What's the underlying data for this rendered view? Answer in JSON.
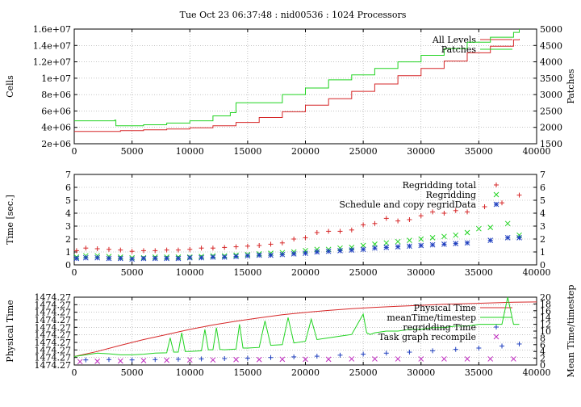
{
  "page_title": "Tue Oct 23 06:37:48 : nid00536 : 1024 Processors",
  "colors": {
    "red": "#d62728",
    "green": "#21d321",
    "blue": "#1f3fbf",
    "purple": "#bf29bf",
    "left_label": "#c0392b",
    "right_label": "#2fbf2f"
  },
  "chart_data": [
    {
      "type": "line",
      "ylabel": "Cells",
      "y2label": "Patches",
      "xlim": [
        0,
        40000
      ],
      "ylim": [
        2000000,
        16000000
      ],
      "y2lim": [
        1500,
        5000
      ],
      "x_ticks": [
        "0",
        "5000",
        "10000",
        "15000",
        "20000",
        "25000",
        "30000",
        "35000",
        "40000"
      ],
      "y_ticks": [
        "2e+06",
        "4e+06",
        "6e+06",
        "8e+06",
        "1e+07",
        "1.2e+07",
        "1.4e+07",
        "1.6e+07"
      ],
      "y2_ticks": [
        "1500",
        "2000",
        "2500",
        "3000",
        "3500",
        "4000",
        "4500",
        "5000"
      ],
      "grid": true,
      "legend_position": "top-right",
      "series": [
        {
          "name": "All Levels",
          "axis": "y",
          "color": "#d62728",
          "x": [
            0,
            3000,
            4000,
            6000,
            8000,
            10000,
            12000,
            14000,
            16000,
            18000,
            20000,
            22000,
            24000,
            26000,
            28000,
            30000,
            32000,
            34000,
            36000,
            38000,
            38500
          ],
          "y": [
            3500000,
            3500000,
            3600000,
            3700000,
            3800000,
            3950000,
            4200000,
            4600000,
            5200000,
            5900000,
            6700000,
            7500000,
            8400000,
            9300000,
            10300000,
            11200000,
            12100000,
            13100000,
            13900000,
            14700000,
            14800000
          ]
        },
        {
          "name": "Patches",
          "axis": "y2",
          "color": "#21d321",
          "x": [
            0,
            3500,
            3600,
            6000,
            8000,
            10000,
            12000,
            13500,
            14000,
            16000,
            18000,
            20000,
            22000,
            24000,
            26000,
            28000,
            30000,
            32000,
            34000,
            36000,
            38000,
            38500
          ],
          "y": [
            2200,
            2220,
            2050,
            2080,
            2130,
            2200,
            2350,
            2450,
            2750,
            2750,
            3000,
            3200,
            3450,
            3600,
            3800,
            4000,
            4200,
            4400,
            4600,
            4750,
            4900,
            5000
          ]
        }
      ]
    },
    {
      "type": "scatter",
      "ylabel": "Time [sec.]",
      "xlim": [
        0,
        40000
      ],
      "ylim": [
        0,
        7
      ],
      "y2lim": [
        0,
        7
      ],
      "x_ticks": [
        "0",
        "5000",
        "10000",
        "15000",
        "20000",
        "25000",
        "30000",
        "35000",
        "40000"
      ],
      "y_ticks": [
        "0",
        "1",
        "2",
        "3",
        "4",
        "5",
        "6",
        "7"
      ],
      "y2_ticks": [
        "0",
        "1",
        "2",
        "3",
        "4",
        "5",
        "6",
        "7"
      ],
      "grid": true,
      "legend_position": "top-right",
      "series": [
        {
          "name": "Regridding total",
          "marker": "plus",
          "color": "#d62728",
          "x": [
            200,
            1000,
            2000,
            3000,
            4000,
            5000,
            6000,
            7000,
            8000,
            9000,
            10000,
            11000,
            12000,
            13000,
            14000,
            15000,
            16000,
            17000,
            18000,
            19000,
            20000,
            21000,
            22000,
            23000,
            24000,
            25000,
            26000,
            27000,
            28000,
            29000,
            30000,
            31000,
            32000,
            33000,
            34000,
            35500,
            37000,
            38500
          ],
          "y": [
            1.1,
            1.3,
            1.25,
            1.2,
            1.15,
            1.05,
            1.1,
            1.1,
            1.15,
            1.15,
            1.2,
            1.3,
            1.3,
            1.35,
            1.4,
            1.45,
            1.5,
            1.6,
            1.7,
            2.0,
            2.1,
            2.5,
            2.6,
            2.6,
            2.7,
            3.1,
            3.2,
            3.6,
            3.4,
            3.5,
            3.8,
            4.1,
            4.0,
            4.2,
            4.1,
            4.5,
            4.8,
            5.4
          ]
        },
        {
          "name": "Regridding",
          "marker": "cross",
          "color": "#21d321",
          "x": [
            200,
            1000,
            2000,
            3000,
            4000,
            5000,
            6000,
            7000,
            8000,
            9000,
            10000,
            11000,
            12000,
            13000,
            14000,
            15000,
            16000,
            17000,
            18000,
            19000,
            20000,
            21000,
            22000,
            23000,
            24000,
            25000,
            26000,
            27000,
            28000,
            29000,
            30000,
            31000,
            32000,
            33000,
            34000,
            35000,
            36000,
            37500,
            38500
          ],
          "y": [
            0.6,
            0.7,
            0.7,
            0.65,
            0.6,
            0.55,
            0.55,
            0.6,
            0.6,
            0.6,
            0.6,
            0.65,
            0.7,
            0.7,
            0.75,
            0.8,
            0.85,
            0.9,
            0.95,
            1.0,
            1.1,
            1.2,
            1.2,
            1.3,
            1.35,
            1.5,
            1.6,
            1.7,
            1.8,
            1.9,
            2.0,
            2.1,
            2.2,
            2.3,
            2.5,
            2.8,
            2.9,
            3.2,
            2.3
          ]
        },
        {
          "name": "Schedule and copy regridData",
          "marker": "star",
          "color": "#1f3fbf",
          "x": [
            200,
            1000,
            2000,
            3000,
            4000,
            5000,
            6000,
            7000,
            8000,
            9000,
            10000,
            11000,
            12000,
            13000,
            14000,
            15000,
            16000,
            17000,
            18000,
            19000,
            20000,
            21000,
            22000,
            23000,
            24000,
            25000,
            26000,
            27000,
            28000,
            29000,
            30000,
            31000,
            32000,
            33000,
            34000,
            36000,
            37500,
            38500
          ],
          "y": [
            0.5,
            0.55,
            0.55,
            0.5,
            0.5,
            0.45,
            0.5,
            0.5,
            0.5,
            0.5,
            0.55,
            0.55,
            0.6,
            0.6,
            0.65,
            0.7,
            0.75,
            0.75,
            0.8,
            0.85,
            0.9,
            1.0,
            1.05,
            1.1,
            1.15,
            1.2,
            1.3,
            1.35,
            1.4,
            1.45,
            1.5,
            1.55,
            1.6,
            1.65,
            1.7,
            1.9,
            2.1,
            2.1
          ]
        }
      ]
    },
    {
      "type": "line",
      "ylabel": "Physical Time",
      "y2label": "Mean Time/timestep",
      "xlim": [
        0,
        40000
      ],
      "ylim": [
        0,
        9
      ],
      "y2lim": [
        0,
        20
      ],
      "x_ticks": [
        "0",
        "5000",
        "10000",
        "15000",
        "20000",
        "25000",
        "30000",
        "35000",
        "40000"
      ],
      "y_ticks": [
        "1474.27",
        "1474.27",
        "1474.27",
        "1474.27",
        "1474.27",
        "1474.27",
        "1474.27",
        "1474.27",
        "1474.27",
        "1474.27"
      ],
      "y2_ticks": [
        "0",
        "2",
        "4",
        "6",
        "8",
        "10",
        "12",
        "14",
        "16",
        "18",
        "20"
      ],
      "grid": true,
      "legend_position": "top-right",
      "series": [
        {
          "name": "Physical Time",
          "axis": "y2",
          "color": "#d62728",
          "x": [
            0,
            2000,
            4000,
            6000,
            8000,
            10000,
            12000,
            14000,
            16000,
            18000,
            20000,
            22000,
            24000,
            26000,
            28000,
            30000,
            32000,
            34000,
            36000,
            38000,
            40000
          ],
          "y": [
            2.5,
            4.0,
            5.8,
            7.5,
            9.0,
            10.5,
            11.8,
            12.9,
            13.9,
            14.8,
            15.5,
            16.1,
            16.6,
            17.0,
            17.3,
            17.6,
            17.9,
            18.1,
            18.3,
            18.5,
            18.6
          ]
        },
        {
          "name": "meanTime/timestep",
          "axis": "y2",
          "color": "#21d321",
          "x": [
            0,
            1000,
            2000,
            3000,
            4000,
            5000,
            6000,
            7000,
            8000,
            8300,
            8600,
            9000,
            9300,
            9600,
            10000,
            11000,
            11300,
            11600,
            12000,
            12300,
            12600,
            13000,
            14000,
            14300,
            14600,
            15000,
            16000,
            16500,
            17000,
            18000,
            18500,
            19000,
            20000,
            20500,
            21000,
            22000,
            23000,
            24000,
            25000,
            25300,
            25600,
            26000,
            27000,
            28000,
            29000,
            30000,
            31000,
            32000,
            33000,
            34000,
            35000,
            36000,
            37000,
            37500,
            38000,
            38500
          ],
          "y": [
            2.5,
            3.0,
            3.5,
            3.3,
            3.0,
            3.0,
            3.2,
            3.5,
            3.6,
            8.0,
            3.8,
            3.8,
            9.5,
            4.0,
            4.0,
            4.2,
            10.5,
            4.5,
            4.5,
            11.0,
            4.6,
            4.5,
            4.7,
            12.0,
            5.0,
            5.0,
            5.2,
            13.0,
            5.8,
            6.0,
            14.0,
            6.5,
            7.0,
            13.5,
            7.5,
            8.0,
            8.5,
            9.0,
            15.0,
            9.5,
            9.0,
            9.5,
            10.0,
            10.0,
            10.5,
            10.5,
            11.0,
            11.0,
            11.5,
            11.5,
            12.0,
            12.0,
            12.0,
            20.0,
            12.0,
            12.0
          ]
        },
        {
          "name": "regridding Time",
          "axis": "y2",
          "marker": "plus",
          "color": "#1f3fbf",
          "x": [
            1000,
            3000,
            5000,
            7000,
            9000,
            11000,
            13000,
            15000,
            17000,
            19000,
            21000,
            23000,
            25000,
            27000,
            29000,
            31000,
            33000,
            35000,
            37000,
            38500
          ],
          "y": [
            1.5,
            1.6,
            1.5,
            1.6,
            1.7,
            1.8,
            1.9,
            2.0,
            2.2,
            2.4,
            2.6,
            2.9,
            3.2,
            3.5,
            3.8,
            4.2,
            4.6,
            5.0,
            5.6,
            6.2
          ]
        },
        {
          "name": "Task graph recompile",
          "axis": "y2",
          "marker": "cross",
          "color": "#bf29bf",
          "x": [
            500,
            2000,
            4000,
            6000,
            8000,
            10000,
            12000,
            14000,
            16000,
            18000,
            20000,
            22000,
            24000,
            26000,
            28000,
            30000,
            32000,
            34000,
            36000,
            38000
          ],
          "y": [
            1.0,
            1.1,
            1.2,
            1.3,
            1.4,
            1.5,
            1.5,
            1.6,
            1.6,
            1.7,
            1.7,
            1.7,
            1.8,
            1.8,
            1.8,
            1.8,
            1.8,
            1.8,
            1.8,
            1.8
          ]
        }
      ]
    }
  ]
}
